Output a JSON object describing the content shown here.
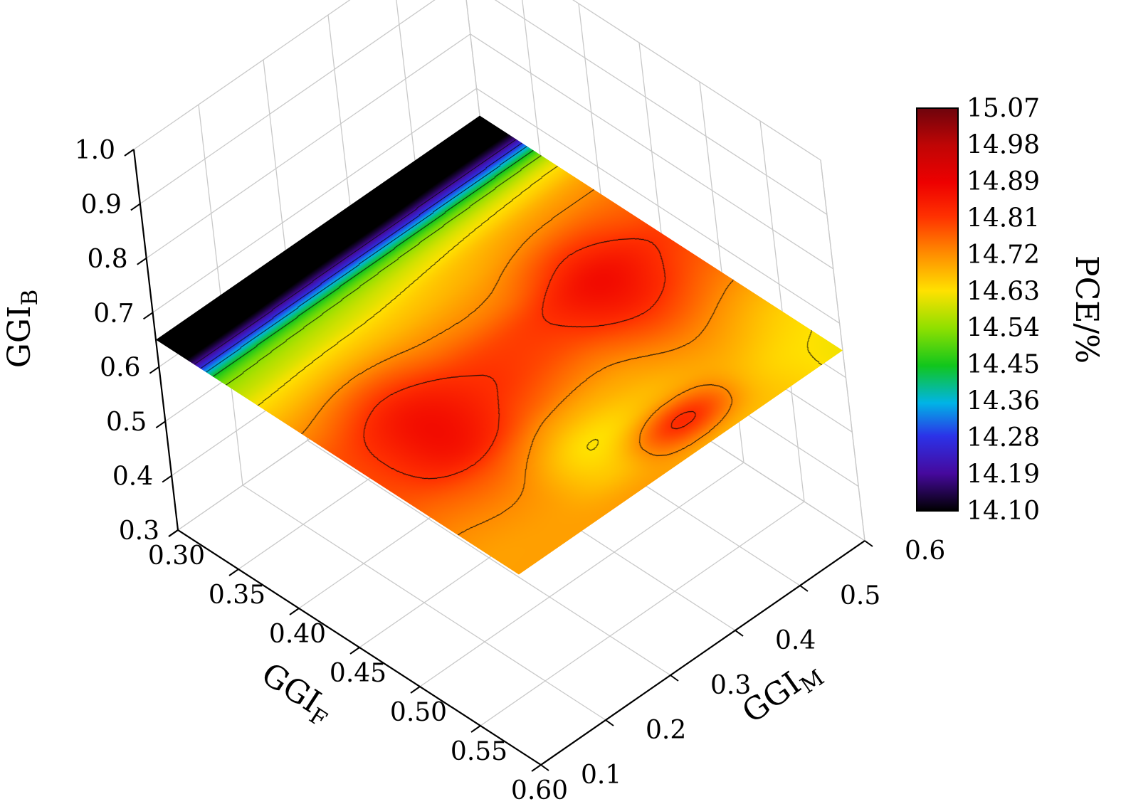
{
  "figure": {
    "background": "#ffffff"
  },
  "chart_data": {
    "type": "heatmap",
    "projection": "3d-surface-contour",
    "title": "",
    "x": {
      "label": "GGI",
      "label_sub": "F",
      "range": [
        0.3,
        0.6
      ],
      "ticks": [
        {
          "v": 0.3,
          "label": "0.30"
        },
        {
          "v": 0.35,
          "label": "0.35"
        },
        {
          "v": 0.4,
          "label": "0.40"
        },
        {
          "v": 0.45,
          "label": "0.45"
        },
        {
          "v": 0.5,
          "label": "0.50"
        },
        {
          "v": 0.55,
          "label": "0.55"
        },
        {
          "v": 0.6,
          "label": "0.60"
        }
      ]
    },
    "y": {
      "label": "GGI",
      "label_sub": "M",
      "range": [
        0.1,
        0.6
      ],
      "ticks": [
        {
          "v": 0.1,
          "label": "0.1"
        },
        {
          "v": 0.2,
          "label": "0.2"
        },
        {
          "v": 0.3,
          "label": "0.3"
        },
        {
          "v": 0.4,
          "label": "0.4"
        },
        {
          "v": 0.5,
          "label": "0.5"
        },
        {
          "v": 0.6,
          "label": "0.6"
        }
      ]
    },
    "z": {
      "label": "GGI",
      "label_sub": "B",
      "range": [
        0.3,
        1.0
      ],
      "ticks": [
        {
          "v": 0.3,
          "label": "0.3"
        },
        {
          "v": 0.4,
          "label": "0.4"
        },
        {
          "v": 0.5,
          "label": "0.5"
        },
        {
          "v": 0.6,
          "label": "0.6"
        },
        {
          "v": 0.7,
          "label": "0.7"
        },
        {
          "v": 0.8,
          "label": "0.8"
        },
        {
          "v": 0.9,
          "label": "0.9"
        },
        {
          "v": 1.0,
          "label": "1.0"
        }
      ]
    },
    "surface_ggib": 0.65,
    "colorbar": {
      "label": "PCE/%",
      "min": 14.1,
      "max": 15.07,
      "ticks": [
        "15.07",
        "14.98",
        "14.89",
        "14.81",
        "14.72",
        "14.63",
        "14.54",
        "14.45",
        "14.36",
        "14.28",
        "14.19",
        "14.10"
      ],
      "colors": [
        [
          14.1,
          "#000000"
        ],
        [
          14.19,
          "#46099d"
        ],
        [
          14.28,
          "#2b32e8"
        ],
        [
          14.36,
          "#00b4e6"
        ],
        [
          14.45,
          "#11c61c"
        ],
        [
          14.54,
          "#8fe000"
        ],
        [
          14.63,
          "#ffe100"
        ],
        [
          14.72,
          "#ff8c00"
        ],
        [
          14.81,
          "#ff3000"
        ],
        [
          14.89,
          "#ee0000"
        ],
        [
          14.98,
          "#c00505"
        ],
        [
          15.07,
          "#6e040c"
        ]
      ]
    },
    "contour_levels": [
      14.19,
      14.28,
      14.36,
      14.45,
      14.54,
      14.63,
      14.72,
      14.81,
      14.89,
      14.98
    ],
    "grid": {
      "f": [
        0.3,
        0.325,
        0.35,
        0.375,
        0.4,
        0.425,
        0.45,
        0.475,
        0.5,
        0.525,
        0.55,
        0.575,
        0.6
      ],
      "m": [
        0.1,
        0.2,
        0.3,
        0.4,
        0.5,
        0.6
      ],
      "pce": [
        [
          13.98,
          14.1,
          14.48,
          14.6,
          14.67,
          14.73,
          14.78,
          14.79,
          14.78,
          14.75,
          14.72,
          14.7,
          14.7
        ],
        [
          13.98,
          14.1,
          14.49,
          14.61,
          14.69,
          14.78,
          14.85,
          14.87,
          14.85,
          14.77,
          14.72,
          14.7,
          14.7
        ],
        [
          13.98,
          14.11,
          14.5,
          14.62,
          14.68,
          14.74,
          14.8,
          14.81,
          14.77,
          14.69,
          14.63,
          14.66,
          14.7
        ],
        [
          13.98,
          14.11,
          14.51,
          14.64,
          14.69,
          14.74,
          14.8,
          14.79,
          14.74,
          14.69,
          14.68,
          14.82,
          14.69
        ],
        [
          13.98,
          14.12,
          14.52,
          14.66,
          14.73,
          14.81,
          14.87,
          14.85,
          14.79,
          14.73,
          14.69,
          14.67,
          14.66
        ],
        [
          13.98,
          14.12,
          14.53,
          14.67,
          14.73,
          14.77,
          14.8,
          14.78,
          14.74,
          14.69,
          14.65,
          14.63,
          14.62
        ]
      ]
    }
  }
}
